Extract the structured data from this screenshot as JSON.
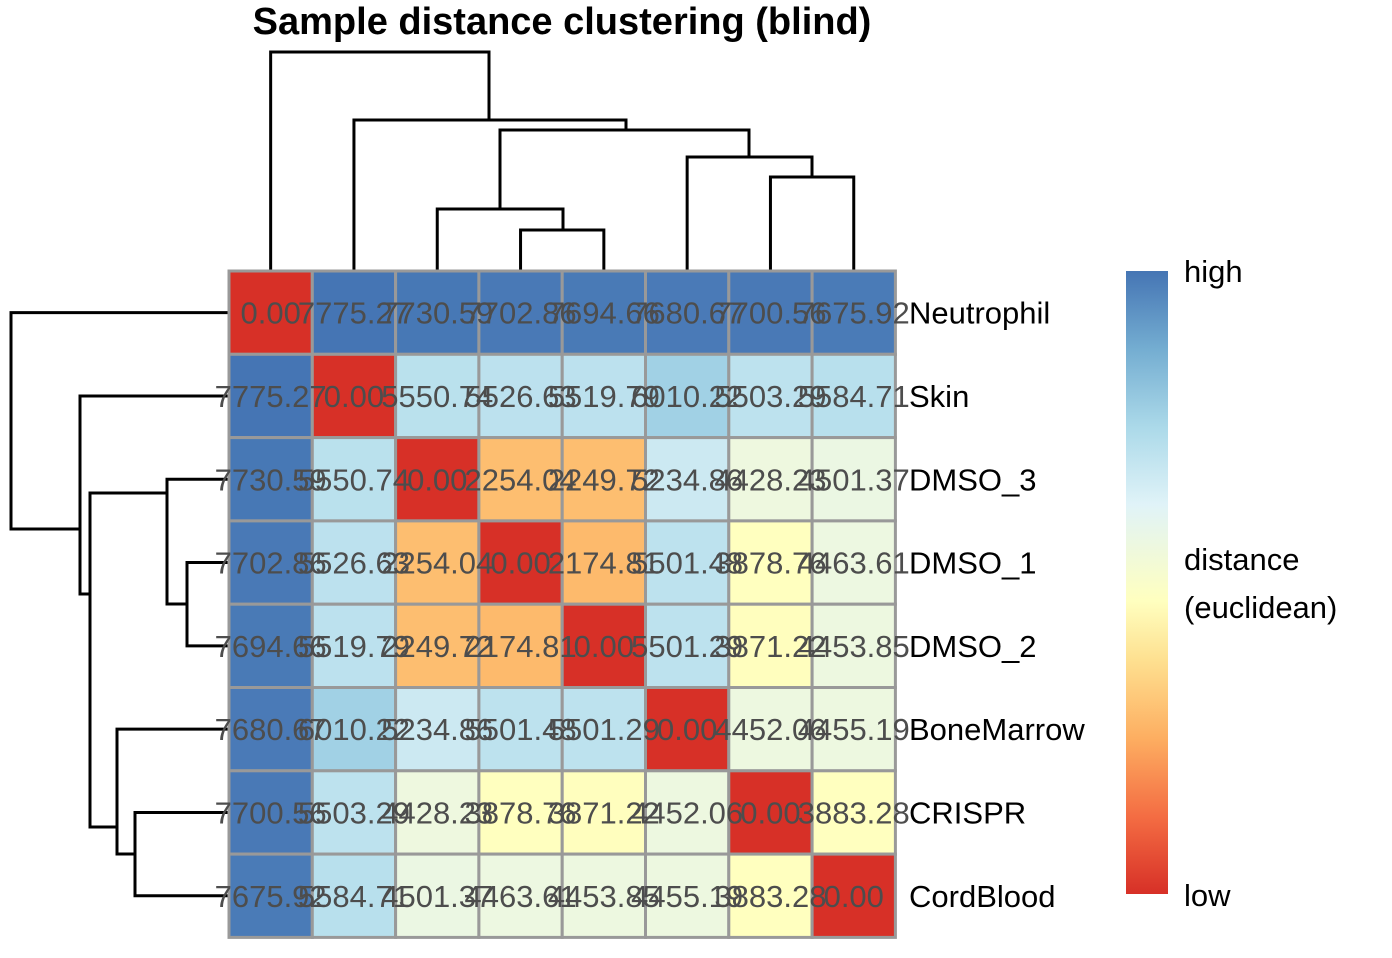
{
  "chart_data": {
    "type": "heatmap",
    "title": "Sample distance clustering (blind)",
    "samples": [
      "Neutrophil",
      "Skin",
      "DMSO_3",
      "DMSO_1",
      "DMSO_2",
      "BoneMarrow",
      "CRISPR",
      "CordBlood"
    ],
    "row_labels": [
      "Neutrophil",
      "Skin",
      "DMSO_3",
      "DMSO_1",
      "DMSO_2",
      "BoneMarrow",
      "CRISPR",
      "CordBlood"
    ],
    "values": [
      [
        0.0,
        7775.27,
        7730.59,
        7702.86,
        7694.66,
        7680.67,
        7700.56,
        7675.92
      ],
      [
        7775.27,
        0.0,
        5550.74,
        5526.63,
        5519.79,
        6010.22,
        5503.29,
        5584.71
      ],
      [
        7730.59,
        5550.74,
        0.0,
        2254.04,
        2249.72,
        5234.86,
        4428.23,
        4501.37
      ],
      [
        7702.86,
        5526.63,
        2254.04,
        0.0,
        2174.81,
        5501.48,
        3878.76,
        4463.61
      ],
      [
        7694.66,
        5519.79,
        2249.72,
        2174.81,
        0.0,
        5501.29,
        3871.22,
        4453.85
      ],
      [
        7680.67,
        6010.22,
        5234.86,
        5501.48,
        5501.29,
        0.0,
        4452.06,
        4455.19
      ],
      [
        7700.56,
        5503.29,
        4428.23,
        3878.76,
        3871.22,
        4452.06,
        0.0,
        3883.28
      ],
      [
        7675.92,
        5584.71,
        4501.37,
        4463.61,
        4453.85,
        4455.19,
        3883.28,
        0.0
      ]
    ],
    "cell_text": [
      [
        "0.00",
        "7775.27",
        "7730.59",
        "7702.86",
        "7694.66",
        "7680.67",
        "7700.56",
        "7675.92"
      ],
      [
        "7775.27",
        "0.00",
        "5550.74",
        "5526.63",
        "5519.79",
        "6010.22",
        "5503.29",
        "5584.71"
      ],
      [
        "7730.59",
        "5550.74",
        "0.00",
        "2254.04",
        "2249.72",
        "5234.86",
        "4428.23",
        "4501.37"
      ],
      [
        "7702.86",
        "5526.63",
        "2254.04",
        "0.00",
        "2174.81",
        "5501.48",
        "3878.76",
        "4463.61"
      ],
      [
        "7694.66",
        "5519.79",
        "2249.72",
        "2174.81",
        "0.00",
        "5501.29",
        "3871.22",
        "4453.85"
      ],
      [
        "7680.67",
        "6010.22",
        "5234.86",
        "5501.48",
        "5501.29",
        "0.00",
        "4452.06",
        "4455.19"
      ],
      [
        "7700.56",
        "5503.29",
        "4428.23",
        "3878.76",
        "3871.22",
        "4452.06",
        "0.00",
        "3883.28"
      ],
      [
        "7675.92",
        "5584.71",
        "4501.37",
        "4463.61",
        "4453.85",
        "4455.19",
        "3883.28",
        "0.00"
      ]
    ],
    "value_range": [
      0,
      7775.27
    ],
    "colorscale": [
      "#d73027",
      "#f46d43",
      "#fdae61",
      "#fee090",
      "#ffffbf",
      "#e0f3f8",
      "#abd9e9",
      "#74add1",
      "#4575b4"
    ],
    "legend": {
      "title_line1": "distance",
      "title_line2": "(euclidean)",
      "high_label": "high",
      "low_label": "low",
      "placement": "right"
    },
    "column_dendrogram": "((Neutrophil,(Skin,((DMSO_3,(DMSO_1,DMSO_2)),(BoneMarrow,(CRISPR,CordBlood))))))",
    "row_dendrogram": "(Neutrophil,(Skin,((DMSO_3,(DMSO_1,DMSO_2)),(BoneMarrow,(CRISPR,CordBlood)))))"
  }
}
